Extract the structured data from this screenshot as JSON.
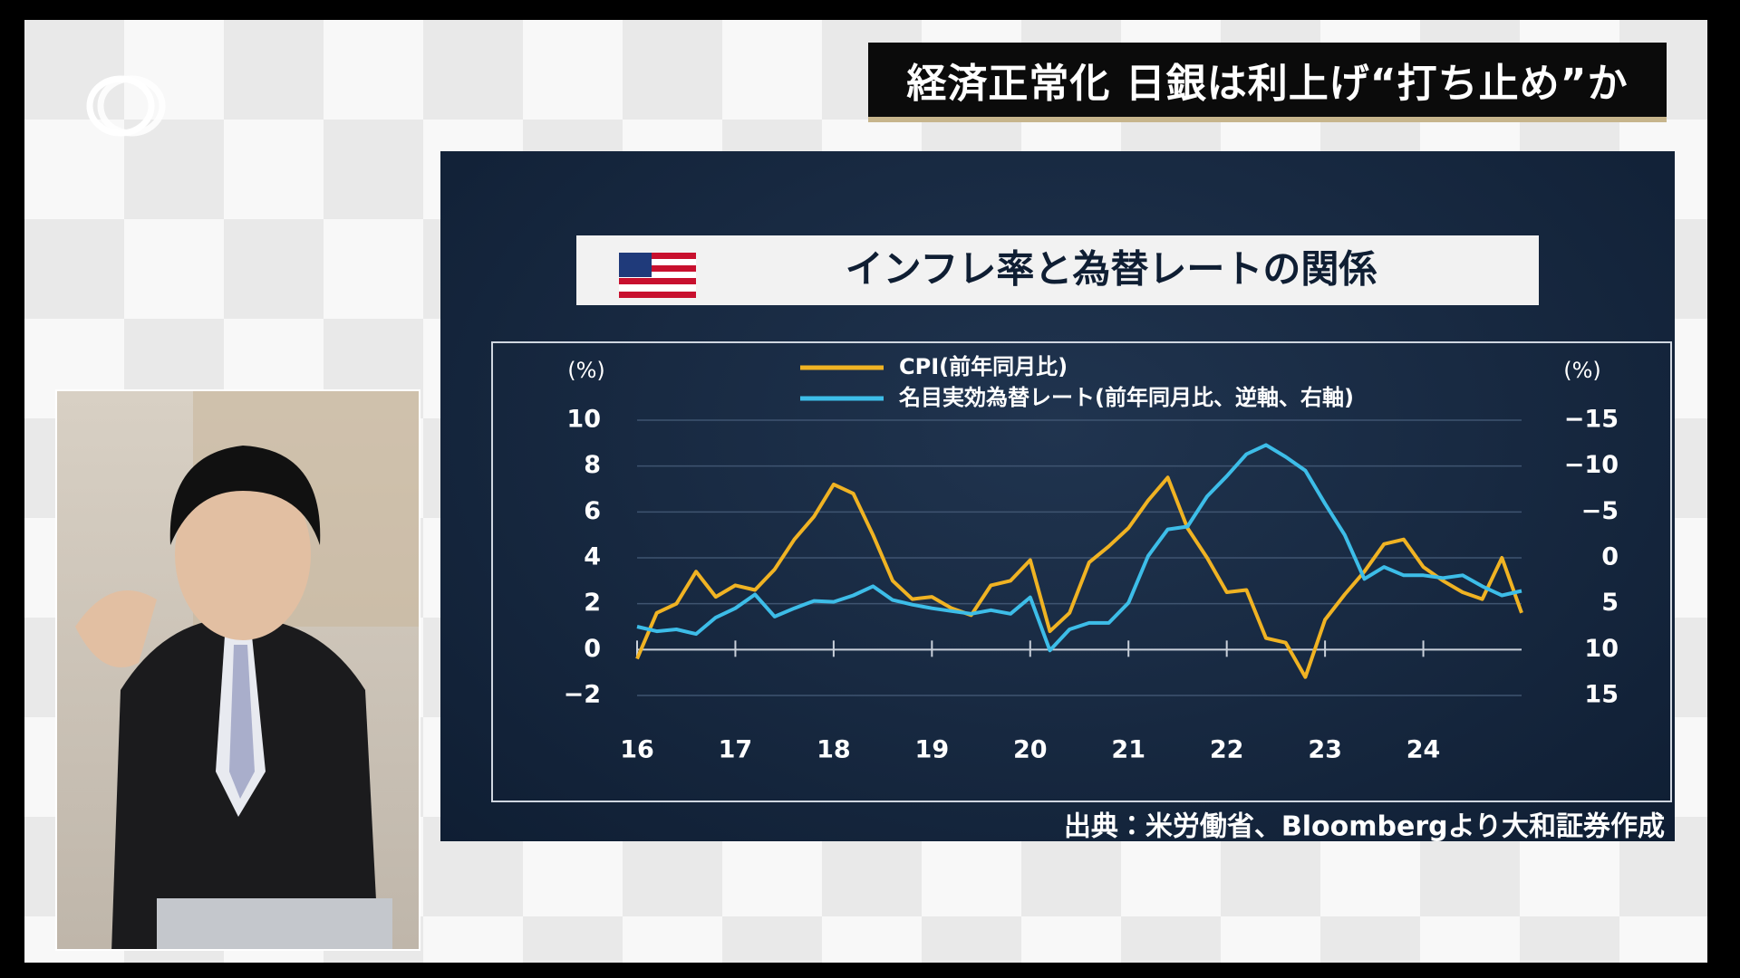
{
  "header": {
    "headline": "経済正常化 日銀は利上げ“打ち止め”か"
  },
  "chart_data": {
    "type": "line",
    "title": "インフレ率と為替レートの関係",
    "y_label": "(%)",
    "y2_label": "(%)",
    "source": "出典：米労働省、Bloombergより大和証券作成",
    "x": [
      16.0,
      16.2,
      16.4,
      16.6,
      16.8,
      17.0,
      17.2,
      17.4,
      17.6,
      17.8,
      18.0,
      18.2,
      18.4,
      18.6,
      18.8,
      19.0,
      19.2,
      19.4,
      19.6,
      19.8,
      20.0,
      20.2,
      20.4,
      20.6,
      20.8,
      21.0,
      21.2,
      21.4,
      21.6,
      21.8,
      22.0,
      22.2,
      22.4,
      22.6,
      22.8,
      23.0,
      23.2,
      23.4,
      23.6,
      23.8,
      24.0,
      24.2,
      24.4,
      24.6,
      24.8,
      25.0
    ],
    "series": [
      {
        "name": "CPI(前年同月比)",
        "color": "#f0b323",
        "values": [
          -0.4,
          1.6,
          2.0,
          3.4,
          2.3,
          2.8,
          2.6,
          3.5,
          4.8,
          5.8,
          7.2,
          6.8,
          5.0,
          3.0,
          2.2,
          2.3,
          1.8,
          1.5,
          2.8,
          3.0,
          3.9,
          0.8,
          1.6,
          3.8,
          4.5,
          5.3,
          6.5,
          7.5,
          5.3,
          4.0,
          2.5,
          2.6,
          0.5,
          0.3,
          -1.2,
          1.3,
          2.4,
          3.4,
          4.6,
          4.8,
          3.6,
          3.0,
          2.5,
          2.2,
          4.0,
          1.6
        ]
      },
      {
        "name": "名目実効為替レート(前年同月比、逆軸、右軸)",
        "color": "#3dbde8",
        "axis": "y2",
        "values": [
          7.5,
          8.0,
          7.8,
          8.3,
          6.5,
          5.5,
          4.0,
          6.4,
          5.5,
          4.7,
          4.8,
          4.1,
          3.1,
          4.6,
          5.1,
          5.5,
          5.8,
          6.1,
          5.7,
          6.1,
          4.3,
          10.1,
          7.8,
          7.1,
          7.1,
          4.9,
          -0.2,
          -3.1,
          -3.4,
          -6.7,
          -8.9,
          -11.3,
          -12.3,
          -11.0,
          -9.5,
          -5.9,
          -2.5,
          2.3,
          1.0,
          1.9,
          1.9,
          2.2,
          1.9,
          3.1,
          4.1,
          3.6
        ]
      }
    ],
    "xlim": [
      16,
      25
    ],
    "xticks": [
      16,
      17,
      18,
      19,
      20,
      21,
      22,
      23,
      24
    ],
    "ylim": [
      -2,
      10
    ],
    "yticks": [
      {
        "value": -2,
        "label": "−2"
      },
      0,
      2,
      4,
      6,
      8,
      10
    ],
    "y2lim": [
      -15,
      15
    ],
    "y2_inverted": true,
    "y2ticks": [
      {
        "value": -15,
        "label": "−15"
      },
      {
        "value": -10,
        "label": "−10"
      },
      {
        "value": -5,
        "label": "−5"
      },
      0,
      5,
      10,
      15
    ],
    "grid": true
  }
}
